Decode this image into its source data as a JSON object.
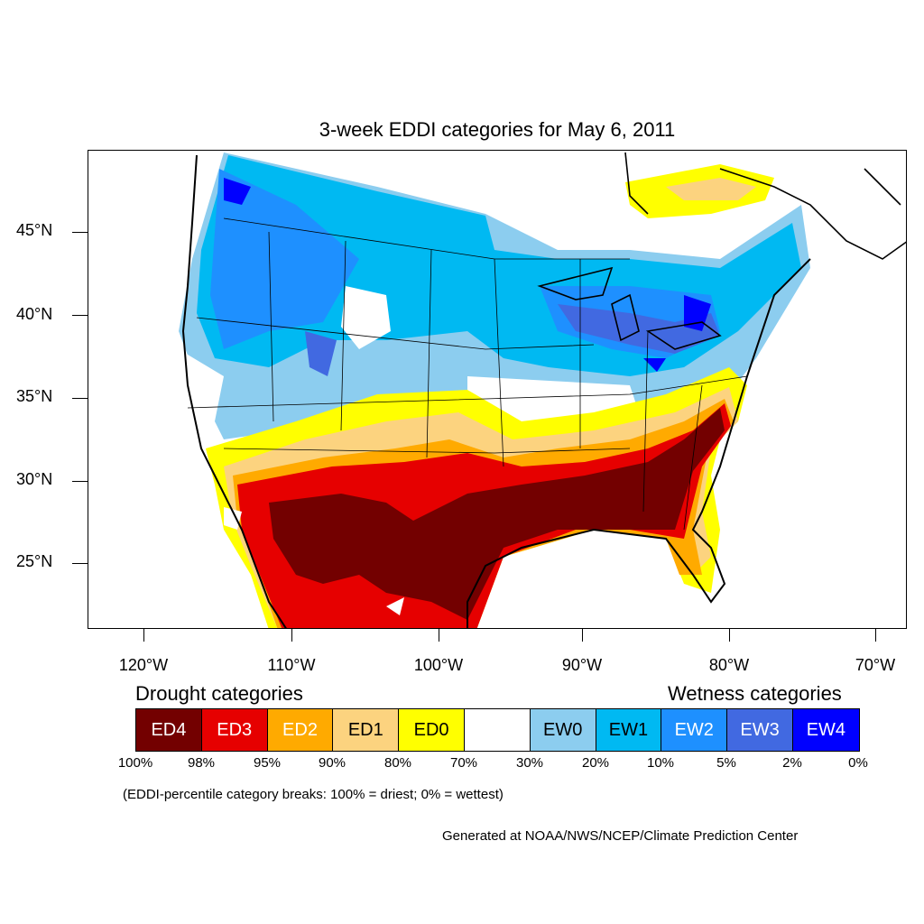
{
  "title": "3-week EDDI categories for May 6, 2011",
  "lat_labels": [
    "45°N",
    "40°N",
    "35°N",
    "30°N",
    "25°N"
  ],
  "lon_labels": [
    "120°W",
    "110°W",
    "100°W",
    "90°W",
    "80°W",
    "70°W"
  ],
  "legend": {
    "drought_heading": "Drought categories",
    "wetness_heading": "Wetness categories",
    "categories": [
      {
        "label": "ED4",
        "color": "#730000",
        "text_color": "#ffffff"
      },
      {
        "label": "ED3",
        "color": "#e60000",
        "text_color": "#ffffff"
      },
      {
        "label": "ED2",
        "color": "#ffaa00",
        "text_color": "#ffffff"
      },
      {
        "label": "ED1",
        "color": "#fcd37f",
        "text_color": "#000000"
      },
      {
        "label": "ED0",
        "color": "#ffff00",
        "text_color": "#000000"
      },
      {
        "label": "",
        "color": "#ffffff",
        "text_color": "#000000"
      },
      {
        "label": "EW0",
        "color": "#8ccdef",
        "text_color": "#000000"
      },
      {
        "label": "EW1",
        "color": "#00b9f2",
        "text_color": "#000000"
      },
      {
        "label": "EW2",
        "color": "#1e90ff",
        "text_color": "#ffffff"
      },
      {
        "label": "EW3",
        "color": "#4169e1",
        "text_color": "#ffffff"
      },
      {
        "label": "EW4",
        "color": "#0000ff",
        "text_color": "#ffffff"
      }
    ],
    "percentiles": [
      "100%",
      "98%",
      "95%",
      "90%",
      "80%",
      "70%",
      "30%",
      "20%",
      "10%",
      "5%",
      "2%",
      "0%"
    ]
  },
  "note": "(EDDI-percentile category breaks: 100% = driest; 0% = wettest)",
  "credit": "Generated at NOAA/NWS/NCEP/Climate Prediction Center"
}
